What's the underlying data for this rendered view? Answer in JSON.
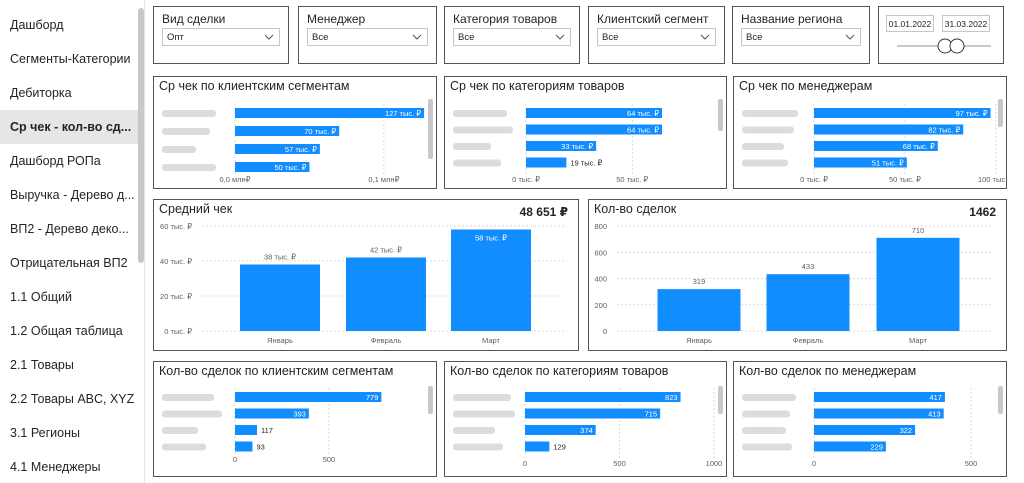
{
  "sidebar": {
    "items": [
      {
        "label": "Дашборд"
      },
      {
        "label": "Сегменты-Категории"
      },
      {
        "label": "Дебиторка"
      },
      {
        "label": "Ср чек - кол-во сд..."
      },
      {
        "label": "Дашборд РОПа"
      },
      {
        "label": "Выручка - Дерево д..."
      },
      {
        "label": "ВП2 - Дерево деко..."
      },
      {
        "label": "Отрицательная ВП2"
      },
      {
        "label": "1.1 Общий"
      },
      {
        "label": "1.2 Общая таблица"
      },
      {
        "label": "2.1 Товары"
      },
      {
        "label": "2.2 Товары ABC, XYZ"
      },
      {
        "label": "3.1 Регионы"
      },
      {
        "label": "4.1 Менеджеры"
      }
    ],
    "active_index": 3
  },
  "filters": [
    {
      "title": "Вид сделки",
      "value": "Опт"
    },
    {
      "title": "Менеджер",
      "value": "Все"
    },
    {
      "title": "Категория товаров",
      "value": "Все"
    },
    {
      "title": "Клиентский сегмент",
      "value": "Все"
    },
    {
      "title": "Название региона",
      "value": "Все"
    }
  ],
  "date_range": {
    "start": "01.01.2022",
    "end": "31.03.2022"
  },
  "colors": {
    "bar": "#118dff",
    "border": "#555555"
  },
  "chart_data": [
    {
      "id": "c1",
      "type": "bar",
      "orientation": "horizontal",
      "title": "Ср чек по клиентским сегментам",
      "values": [
        127,
        70,
        57,
        50
      ],
      "value_labels": [
        "127 тыс. ₽",
        "70 тыс. ₽",
        "57 тыс. ₽",
        "50 тыс. ₽"
      ],
      "xmax": 135,
      "ticks": [
        {
          "v": 0,
          "label": "0,0 млн₽"
        },
        {
          "v": 100,
          "label": "0,1 млн₽"
        }
      ]
    },
    {
      "id": "c2",
      "type": "bar",
      "orientation": "horizontal",
      "title": "Ср чек по категориям товаров",
      "values": [
        64,
        64,
        33,
        19
      ],
      "value_labels": [
        "64 тыс. ₽",
        "64 тыс. ₽",
        "33 тыс. ₽",
        "19 тыс. ₽"
      ],
      "xmax": 80,
      "ticks": [
        {
          "v": 0,
          "label": "0 тыс. ₽"
        },
        {
          "v": 50,
          "label": "50 тыс. ₽"
        }
      ]
    },
    {
      "id": "c3",
      "type": "bar",
      "orientation": "horizontal",
      "title": "Ср чек по менеджерам",
      "values": [
        97,
        82,
        68,
        51
      ],
      "value_labels": [
        "97 тыс. ₽",
        "82 тыс. ₽",
        "68 тыс. ₽",
        "51 тыс. ₽"
      ],
      "xmax": 100,
      "ticks": [
        {
          "v": 0,
          "label": "0 тыс. ₽"
        },
        {
          "v": 50,
          "label": "50 тыс. ₽"
        },
        {
          "v": 100,
          "label": "100 тыс. ₽"
        }
      ]
    },
    {
      "id": "c4",
      "type": "bar",
      "orientation": "vertical",
      "title": "Средний чек",
      "kpi": "48 651 ₽",
      "categories": [
        "Январь",
        "Февраль",
        "Март"
      ],
      "values": [
        38,
        42,
        58
      ],
      "value_labels": [
        "38 тыс. ₽",
        "42 тыс. ₽",
        "58 тыс. ₽"
      ],
      "ylim": [
        0,
        60
      ],
      "yticks": [
        {
          "v": 0,
          "label": "0 тыс. ₽"
        },
        {
          "v": 20,
          "label": "20 тыс. ₽"
        },
        {
          "v": 40,
          "label": "40 тыс. ₽"
        },
        {
          "v": 60,
          "label": "60 тыс. ₽"
        }
      ]
    },
    {
      "id": "c5",
      "type": "bar",
      "orientation": "vertical",
      "title": "Кол-во сделок",
      "kpi": "1462",
      "categories": [
        "Январь",
        "Февраль",
        "Март"
      ],
      "values": [
        319,
        433,
        710
      ],
      "value_labels": [
        "319",
        "433",
        "710"
      ],
      "ylim": [
        0,
        800
      ],
      "yticks": [
        {
          "v": 0,
          "label": "0"
        },
        {
          "v": 200,
          "label": "200"
        },
        {
          "v": 400,
          "label": "400"
        },
        {
          "v": 600,
          "label": "600"
        },
        {
          "v": 800,
          "label": "800"
        }
      ]
    },
    {
      "id": "c6",
      "type": "bar",
      "orientation": "horizontal",
      "title": "Кол-во сделок по клиентским сегментам",
      "values": [
        779,
        393,
        117,
        93
      ],
      "value_labels": [
        "779",
        "393",
        "117",
        "93"
      ],
      "xmax": 830,
      "ticks": [
        {
          "v": 0,
          "label": "0"
        },
        {
          "v": 500,
          "label": "500"
        }
      ]
    },
    {
      "id": "c7",
      "type": "bar",
      "orientation": "horizontal",
      "title": "Кол-во сделок по категориям товаров",
      "values": [
        823,
        715,
        374,
        129
      ],
      "value_labels": [
        "823",
        "715",
        "374",
        "129"
      ],
      "xmax": 1000,
      "ticks": [
        {
          "v": 0,
          "label": "0"
        },
        {
          "v": 500,
          "label": "500"
        },
        {
          "v": 1000,
          "label": "1000"
        }
      ]
    },
    {
      "id": "c8",
      "type": "bar",
      "orientation": "horizontal",
      "title": "Кол-во сделок по менеджерам",
      "values": [
        417,
        413,
        322,
        229
      ],
      "value_labels": [
        "417",
        "413",
        "322",
        "229"
      ],
      "xmax": 500,
      "ticks": [
        {
          "v": 0,
          "label": "0"
        },
        {
          "v": 500,
          "label": "500"
        }
      ]
    }
  ]
}
